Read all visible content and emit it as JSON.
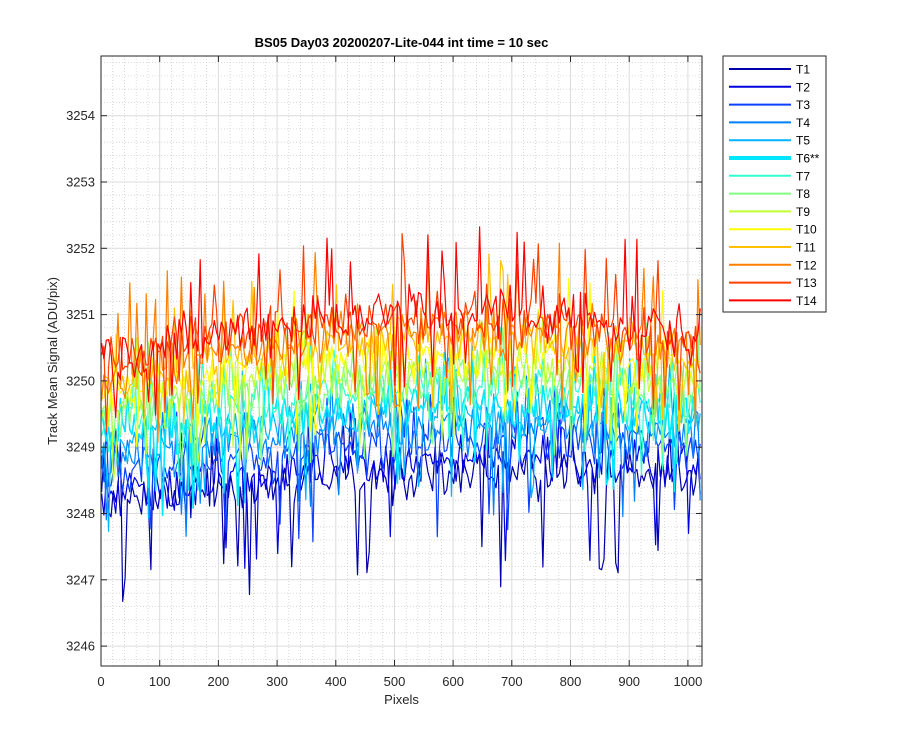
{
  "chart_data": {
    "type": "line",
    "title": "BS05 Day03 20200207-Lite-044 int time = 10 sec",
    "xlabel": "Pixels",
    "ylabel": "Track Mean Signal (ADU/pix)",
    "xlim": [
      0,
      1024
    ],
    "ylim": [
      3245.7,
      3254.9
    ],
    "xticks": [
      0,
      100,
      200,
      300,
      400,
      500,
      600,
      700,
      800,
      900,
      1000
    ],
    "yticks": [
      3246,
      3247,
      3248,
      3249,
      3250,
      3251,
      3252,
      3253,
      3254
    ],
    "grid": "major and minor",
    "legend_position": "outside-top-right",
    "x_step": 4,
    "series": [
      {
        "name": "T1",
        "color": "#0000aa",
        "center_start": 3248.15,
        "center_end": 3248.55,
        "curvature": 0.25,
        "spread": 0.55,
        "spike_low": 1.8,
        "spike_high": 0.9
      },
      {
        "name": "T2",
        "color": "#0000e0",
        "center_start": 3248.3,
        "center_end": 3248.7,
        "curvature": 0.25,
        "spread": 0.55,
        "spike_low": 1.6,
        "spike_high": 0.9
      },
      {
        "name": "T3",
        "color": "#0a40ff",
        "center_start": 3248.6,
        "center_end": 3249.0,
        "curvature": 0.25,
        "spread": 0.55,
        "spike_low": 1.5,
        "spike_high": 0.9
      },
      {
        "name": "T4",
        "color": "#0080ff",
        "center_start": 3248.8,
        "center_end": 3249.2,
        "curvature": 0.3,
        "spread": 0.55,
        "spike_low": 1.4,
        "spike_high": 0.9
      },
      {
        "name": "T5",
        "color": "#00b4ff",
        "center_start": 3249.0,
        "center_end": 3249.4,
        "curvature": 0.3,
        "spread": 0.55,
        "spike_low": 1.3,
        "spike_high": 0.9
      },
      {
        "name": "T6**",
        "color": "#00e6ff",
        "center_start": 3249.1,
        "center_end": 3249.5,
        "curvature": 0.3,
        "spread": 0.5,
        "spike_low": 1.3,
        "spike_high": 0.9,
        "bold": true
      },
      {
        "name": "T7",
        "color": "#30ffd0",
        "center_start": 3249.3,
        "center_end": 3249.7,
        "curvature": 0.35,
        "spread": 0.55,
        "spike_low": 1.2,
        "spike_high": 1.0
      },
      {
        "name": "T8",
        "color": "#80ff80",
        "center_start": 3249.5,
        "center_end": 3249.9,
        "curvature": 0.35,
        "spread": 0.55,
        "spike_low": 1.2,
        "spike_high": 1.0
      },
      {
        "name": "T9",
        "color": "#c0ff30",
        "center_start": 3249.6,
        "center_end": 3250.0,
        "curvature": 0.4,
        "spread": 0.6,
        "spike_low": 1.2,
        "spike_high": 1.1
      },
      {
        "name": "T10",
        "color": "#ffff00",
        "center_start": 3249.8,
        "center_end": 3250.2,
        "curvature": 0.4,
        "spread": 0.6,
        "spike_low": 1.2,
        "spike_high": 1.2
      },
      {
        "name": "T11",
        "color": "#ffc000",
        "center_start": 3250.0,
        "center_end": 3250.4,
        "curvature": 0.45,
        "spread": 0.6,
        "spike_low": 1.2,
        "spike_high": 1.3
      },
      {
        "name": "T12",
        "color": "#ff8000",
        "center_start": 3250.1,
        "center_end": 3250.5,
        "curvature": 0.45,
        "spread": 0.6,
        "spike_low": 1.2,
        "spike_high": 1.4
      },
      {
        "name": "T13",
        "color": "#ff4000",
        "center_start": 3250.3,
        "center_end": 3250.6,
        "curvature": 0.5,
        "spread": 0.6,
        "spike_low": 1.2,
        "spike_high": 1.3
      },
      {
        "name": "T14",
        "color": "#ff0000",
        "center_start": 3250.3,
        "center_end": 3250.7,
        "curvature": 0.55,
        "spread": 0.65,
        "spike_low": 1.2,
        "spike_high": 1.3
      }
    ]
  }
}
